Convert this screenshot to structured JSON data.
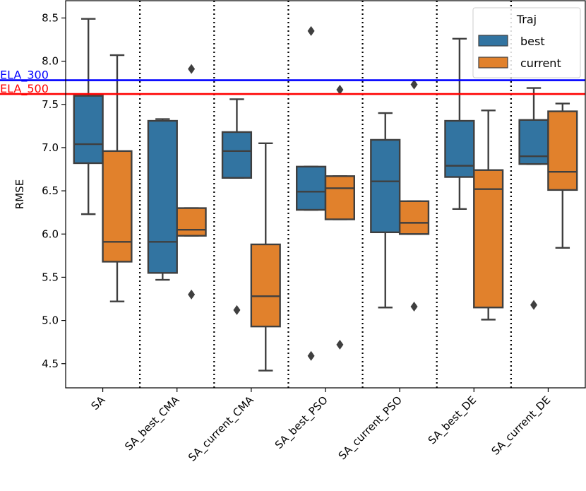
{
  "chart_data": {
    "type": "box",
    "ylabel": "RMSE",
    "xlabel": "",
    "ylim": [
      4.22,
      8.7
    ],
    "yticks": [
      4.5,
      5.0,
      5.5,
      6.0,
      6.5,
      7.0,
      7.5,
      8.0,
      8.5
    ],
    "ytick_labels": [
      "4.5",
      "5.0",
      "5.5",
      "6.0",
      "6.5",
      "7.0",
      "7.5",
      "8.0",
      "8.5"
    ],
    "categories": [
      "SA",
      "SA_best_CMA",
      "SA_current_CMA",
      "SA_best_PSO",
      "SA_current_PSO",
      "SA_best_DE",
      "SA_current_DE"
    ],
    "legend": {
      "title": "Traj",
      "position": "top-right"
    },
    "series": [
      {
        "name": "best",
        "color": "#3274a1",
        "boxes": [
          {
            "whislo": 6.23,
            "q1": 6.82,
            "med": 7.04,
            "q3": 7.6,
            "whishi": 8.49,
            "fliers": []
          },
          {
            "whislo": 5.47,
            "q1": 5.55,
            "med": 5.91,
            "q3": 7.31,
            "whishi": 7.33,
            "fliers": []
          },
          {
            "whislo": 6.65,
            "q1": 6.65,
            "med": 6.96,
            "q3": 7.18,
            "whishi": 7.56,
            "fliers": [
              5.12
            ]
          },
          {
            "whislo": 6.28,
            "q1": 6.28,
            "med": 6.49,
            "q3": 6.78,
            "whishi": 6.78,
            "fliers": [
              8.35,
              4.59
            ]
          },
          {
            "whislo": 5.15,
            "q1": 6.02,
            "med": 6.61,
            "q3": 7.09,
            "whishi": 7.4,
            "fliers": []
          },
          {
            "whislo": 6.29,
            "q1": 6.66,
            "med": 6.79,
            "q3": 7.31,
            "whishi": 8.26,
            "fliers": []
          },
          {
            "whislo": 6.81,
            "q1": 6.81,
            "med": 6.9,
            "q3": 7.32,
            "whishi": 7.69,
            "fliers": [
              5.18
            ]
          }
        ]
      },
      {
        "name": "current",
        "color": "#e1812c",
        "boxes": [
          {
            "whislo": 5.22,
            "q1": 5.68,
            "med": 5.91,
            "q3": 6.96,
            "whishi": 8.07,
            "fliers": []
          },
          {
            "whislo": 5.98,
            "q1": 5.98,
            "med": 6.05,
            "q3": 6.3,
            "whishi": 6.3,
            "fliers": [
              7.91,
              5.3
            ]
          },
          {
            "whislo": 4.42,
            "q1": 4.93,
            "med": 5.28,
            "q3": 5.88,
            "whishi": 7.05,
            "fliers": []
          },
          {
            "whislo": 6.17,
            "q1": 6.17,
            "med": 6.53,
            "q3": 6.67,
            "whishi": 6.67,
            "fliers": [
              7.67,
              4.72
            ]
          },
          {
            "whislo": 6.0,
            "q1": 6.0,
            "med": 6.13,
            "q3": 6.38,
            "whishi": 6.38,
            "fliers": [
              7.73,
              5.16
            ]
          },
          {
            "whislo": 5.01,
            "q1": 5.15,
            "med": 6.52,
            "q3": 6.74,
            "whishi": 7.43,
            "fliers": []
          },
          {
            "whislo": 5.84,
            "q1": 6.51,
            "med": 6.72,
            "q3": 7.42,
            "whishi": 7.51,
            "fliers": []
          }
        ]
      }
    ],
    "reference_lines": [
      {
        "label": "ELA_300",
        "value": 7.78,
        "color": "#0000ff"
      },
      {
        "label": "ELA_500",
        "value": 7.62,
        "color": "#ff0000"
      }
    ],
    "separators": "dotted vertical lines between categories",
    "grid": false
  }
}
